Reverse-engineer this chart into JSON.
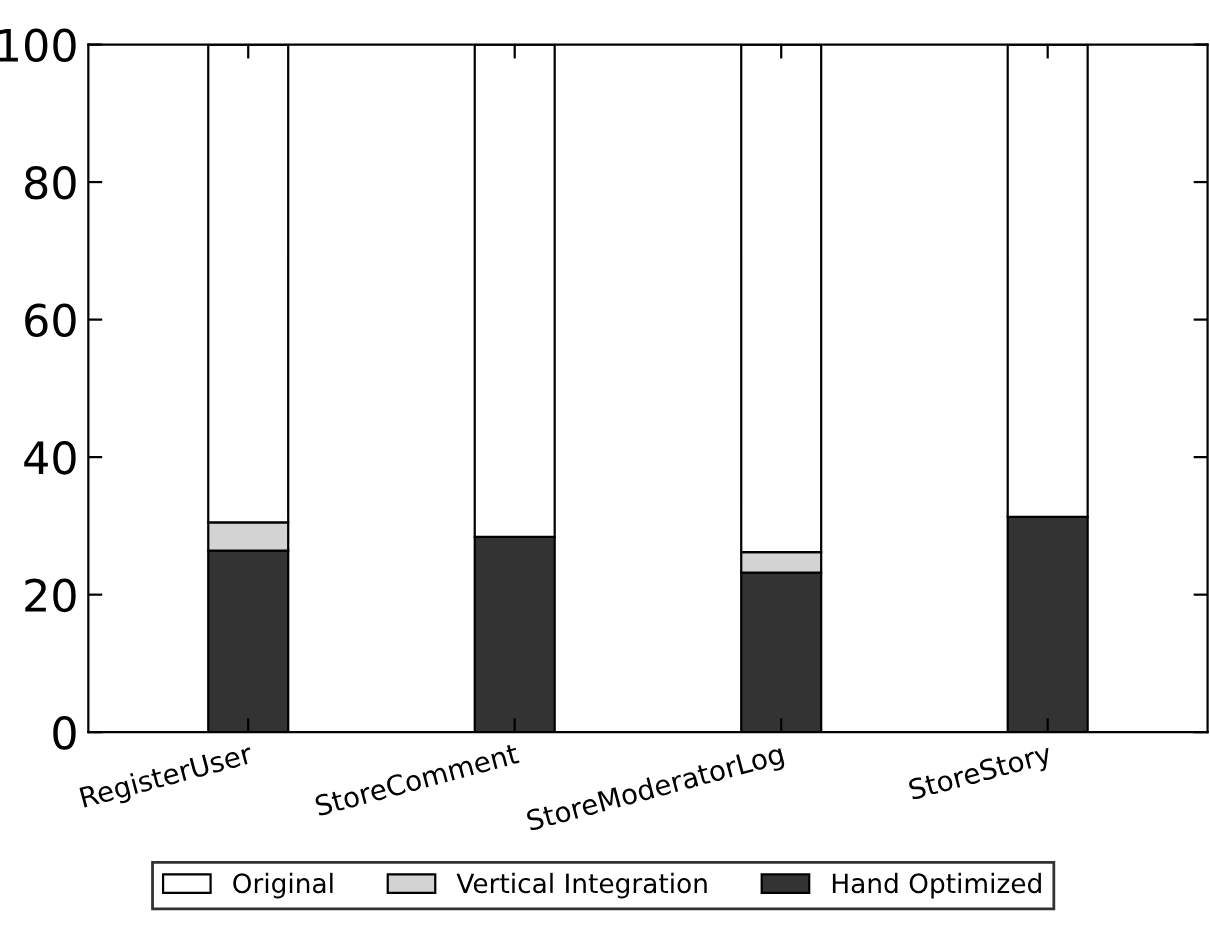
{
  "chart_data": {
    "type": "bar",
    "stacked": true,
    "categories": [
      "RegisterUser",
      "StoreComment",
      "StoreModeratorLog",
      "StoreStory"
    ],
    "series": [
      {
        "name": "Hand Optimized",
        "color": "#333333",
        "values": [
          26.4,
          28.4,
          23.2,
          31.3
        ]
      },
      {
        "name": "Vertical Integration",
        "color": "#d3d3d3",
        "values": [
          4.1,
          null,
          3.0,
          null
        ]
      },
      {
        "name": "Original",
        "color": "#ffffff",
        "values": [
          69.5,
          71.6,
          73.8,
          68.7
        ]
      }
    ],
    "ylim": [
      0,
      100
    ],
    "yticks": [
      0,
      20,
      40,
      60,
      80,
      100
    ],
    "grid": false,
    "legend": "bottom"
  }
}
